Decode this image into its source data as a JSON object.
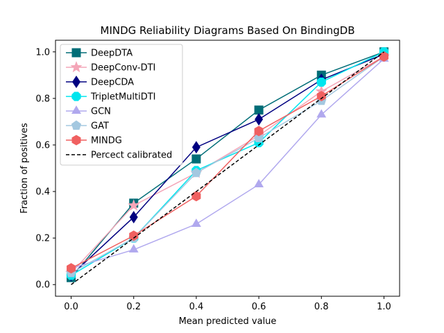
{
  "chart_data": {
    "type": "line",
    "title": "MINDG Reliability Diagrams Based On BindingDB",
    "xlabel": "Mean predicted value",
    "ylabel": "Fraction of positives",
    "xlim": [
      -0.05,
      1.05
    ],
    "ylim": [
      -0.05,
      1.05
    ],
    "xticks": [
      "0.0",
      "0.2",
      "0.4",
      "0.6",
      "0.8",
      "1.0"
    ],
    "yticks": [
      "0.0",
      "0.2",
      "0.4",
      "0.6",
      "0.8",
      "1.0"
    ],
    "x": [
      0.0,
      0.2,
      0.4,
      0.6,
      0.8,
      1.0
    ],
    "grid": false,
    "legend_position": "top-left",
    "series": [
      {
        "name": "DeepDTA",
        "color": "#006d77",
        "marker": "square",
        "values": [
          0.03,
          0.35,
          0.54,
          0.75,
          0.9,
          1.0
        ]
      },
      {
        "name": "DeepConv-DTI",
        "color": "#f4a6b8",
        "marker": "star",
        "values": [
          0.05,
          0.34,
          0.48,
          0.64,
          0.83,
          0.98
        ]
      },
      {
        "name": "DeepCDA",
        "color": "#000080",
        "marker": "diamond",
        "values": [
          0.04,
          0.29,
          0.59,
          0.71,
          0.88,
          0.99
        ]
      },
      {
        "name": "TripletMultiDTI",
        "color": "#00e5ee",
        "marker": "octagon",
        "values": [
          0.04,
          0.2,
          0.49,
          0.61,
          0.87,
          1.0
        ]
      },
      {
        "name": "GCN",
        "color": "#b0a8ee",
        "marker": "triangle",
        "values": [
          0.07,
          0.15,
          0.26,
          0.43,
          0.73,
          0.97
        ]
      },
      {
        "name": "GAT",
        "color": "#a4c8e0",
        "marker": "pentagon",
        "values": [
          0.05,
          0.2,
          0.48,
          0.63,
          0.79,
          0.98
        ]
      },
      {
        "name": "MINDG",
        "color": "#f06060",
        "marker": "hexagon",
        "values": [
          0.07,
          0.21,
          0.38,
          0.66,
          0.81,
          0.98
        ]
      },
      {
        "name": "Percect calibrated",
        "color": "#000000",
        "marker": "none",
        "dashed": true,
        "values": [
          0.0,
          0.2,
          0.4,
          0.6,
          0.8,
          1.0
        ]
      }
    ]
  }
}
